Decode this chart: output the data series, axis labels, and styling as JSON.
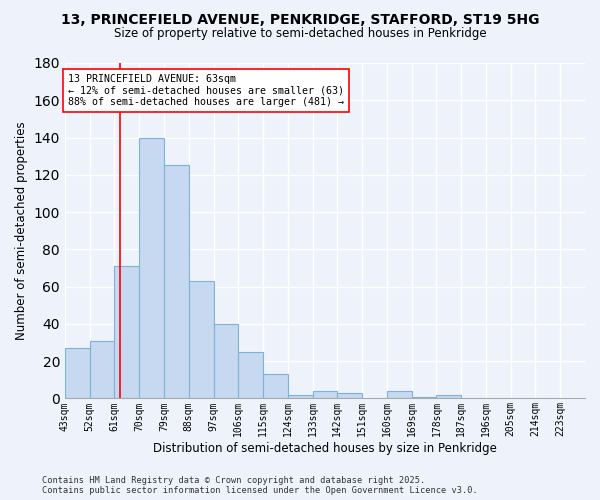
{
  "title1": "13, PRINCEFIELD AVENUE, PENKRIDGE, STAFFORD, ST19 5HG",
  "title2": "Size of property relative to semi-detached houses in Penkridge",
  "xlabel": "Distribution of semi-detached houses by size in Penkridge",
  "ylabel": "Number of semi-detached properties",
  "bin_labels": [
    "43sqm",
    "52sqm",
    "61sqm",
    "70sqm",
    "79sqm",
    "88sqm",
    "97sqm",
    "106sqm",
    "115sqm",
    "124sqm",
    "133sqm",
    "142sqm",
    "151sqm",
    "160sqm",
    "169sqm",
    "178sqm",
    "187sqm",
    "196sqm",
    "205sqm",
    "214sqm",
    "223sqm"
  ],
  "bin_edges": [
    43,
    52,
    61,
    70,
    79,
    88,
    97,
    106,
    115,
    124,
    133,
    142,
    151,
    160,
    169,
    178,
    187,
    196,
    205,
    214,
    223
  ],
  "bar_heights": [
    27,
    31,
    71,
    140,
    125,
    63,
    40,
    25,
    13,
    2,
    4,
    3,
    0,
    4,
    1,
    2,
    0,
    0,
    0,
    0
  ],
  "bar_color": "#c6d9f0",
  "bar_edge_color": "#7db3d8",
  "property_line_x": 63,
  "annotation_title": "13 PRINCEFIELD AVENUE: 63sqm",
  "annotation_line1": "← 12% of semi-detached houses are smaller (63)",
  "annotation_line2": "88% of semi-detached houses are larger (481) →",
  "ylim": [
    0,
    180
  ],
  "yticks": [
    0,
    20,
    40,
    60,
    80,
    100,
    120,
    140,
    160,
    180
  ],
  "background_color": "#eef2fb",
  "grid_color": "#ffffff",
  "footer1": "Contains HM Land Registry data © Crown copyright and database right 2025.",
  "footer2": "Contains public sector information licensed under the Open Government Licence v3.0."
}
